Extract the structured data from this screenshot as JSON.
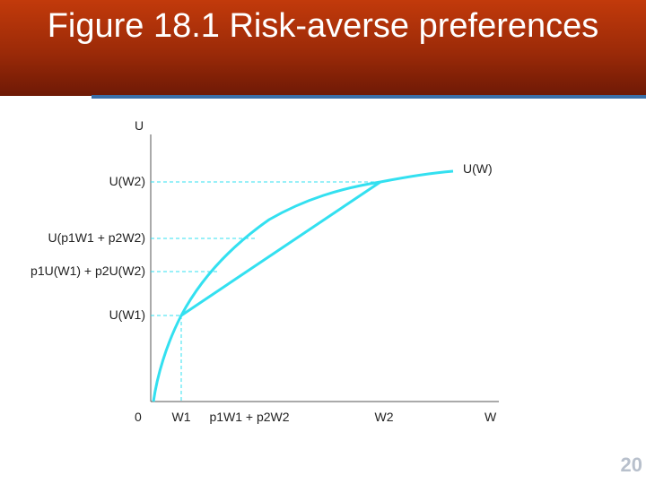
{
  "title": "Figure 18.1 Risk-averse preferences",
  "page_number": "20",
  "colors": {
    "curve": "#33e0f0",
    "guide": "#33e0f0",
    "axis": "#555555",
    "banner": "#a8300a",
    "rule": "#3a6fa8"
  },
  "axes": {
    "y_label": "U",
    "x_label": "W",
    "origin_label": "0"
  },
  "y_ticks": {
    "u_w2": "U(W2)",
    "u_expected_wealth": "U(p1W1 + p2W2)",
    "expected_utility": "p1U(W1) + p2U(W2)",
    "u_w1": "U(W1)"
  },
  "x_ticks": {
    "w1": "W1",
    "expected_wealth": "p1W1 + p2W2",
    "w2": "W2"
  },
  "curve_label": "U(W)"
}
